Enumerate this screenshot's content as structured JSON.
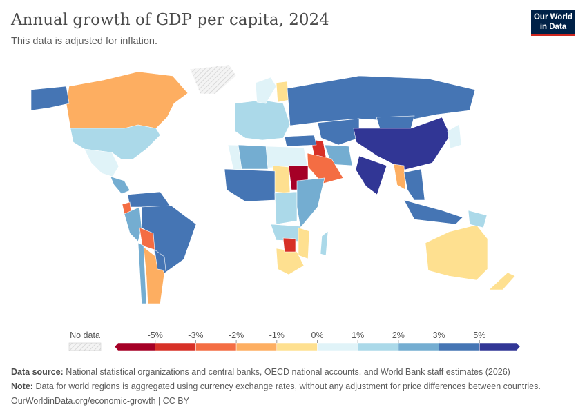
{
  "header": {
    "title": "Annual growth of GDP per capita, 2024",
    "subtitle": "This data is adjusted for inflation.",
    "logo": "Our World in Data"
  },
  "chart_data": {
    "type": "map",
    "title": "Annual growth of GDP per capita, 2024",
    "subtitle": "This data is adjusted for inflation.",
    "legend": {
      "no_data_label": "No data",
      "no_data_color": "hatched-grey",
      "tick_labels": [
        "-5%",
        "-3%",
        "-2%",
        "-1%",
        "0%",
        "1%",
        "2%",
        "3%",
        "5%"
      ],
      "bin_colors": [
        "#a50026",
        "#d73027",
        "#f46d43",
        "#fdae61",
        "#fee090",
        "#e0f3f8",
        "#abd9e9",
        "#74add1",
        "#4575b4",
        "#313695"
      ],
      "placement": "bottom"
    },
    "regions": [
      {
        "name": "Canada",
        "bin": 3
      },
      {
        "name": "Alaska",
        "bin": 8
      },
      {
        "name": "United States",
        "bin": 6
      },
      {
        "name": "Mexico",
        "bin": 5
      },
      {
        "name": "Central America",
        "bin": 7
      },
      {
        "name": "Greenland",
        "bin": -1
      },
      {
        "name": "Colombia/Venezuela",
        "bin": 8
      },
      {
        "name": "Brazil",
        "bin": 8
      },
      {
        "name": "Ecuador",
        "bin": 2
      },
      {
        "name": "Peru",
        "bin": 7
      },
      {
        "name": "Bolivia",
        "bin": 2
      },
      {
        "name": "Argentina",
        "bin": 3
      },
      {
        "name": "Chile",
        "bin": 7
      },
      {
        "name": "Paraguay/Uruguay",
        "bin": 8
      },
      {
        "name": "Europe",
        "bin": 6
      },
      {
        "name": "Scandinavia",
        "bin": 5
      },
      {
        "name": "Finland",
        "bin": 4
      },
      {
        "name": "Russia",
        "bin": 8
      },
      {
        "name": "Central Asia",
        "bin": 8
      },
      {
        "name": "Mongolia",
        "bin": 8
      },
      {
        "name": "China",
        "bin": 9
      },
      {
        "name": "India",
        "bin": 9
      },
      {
        "name": "Iran",
        "bin": 7
      },
      {
        "name": "Iraq",
        "bin": 1
      },
      {
        "name": "Saudi Arabia",
        "bin": 2
      },
      {
        "name": "Turkey",
        "bin": 8
      },
      {
        "name": "North Africa",
        "bin": 5
      },
      {
        "name": "Algeria",
        "bin": 7
      },
      {
        "name": "Sudan",
        "bin": 0
      },
      {
        "name": "Chad",
        "bin": 4
      },
      {
        "name": "West Africa",
        "bin": 8
      },
      {
        "name": "Central Africa",
        "bin": 6
      },
      {
        "name": "East Africa",
        "bin": 7
      },
      {
        "name": "Angola/Zambia",
        "bin": 6
      },
      {
        "name": "Southern Africa",
        "bin": 4
      },
      {
        "name": "Zimbabwe",
        "bin": 1
      },
      {
        "name": "Mozambique",
        "bin": 4
      },
      {
        "name": "Madagascar",
        "bin": 6
      },
      {
        "name": "Myanmar",
        "bin": 3
      },
      {
        "name": "Southeast Asia",
        "bin": 8
      },
      {
        "name": "Indonesia",
        "bin": 8
      },
      {
        "name": "Japan",
        "bin": 5
      },
      {
        "name": "Australia",
        "bin": 4
      },
      {
        "name": "New Zealand",
        "bin": 4
      },
      {
        "name": "Papua New Guinea",
        "bin": 6
      }
    ]
  },
  "footer": {
    "source_label": "Data source:",
    "source": "National statistical organizations and central banks, OECD national accounts, and World Bank staff estimates (2026)",
    "note_label": "Note:",
    "note": "Data for world regions is aggregated using currency exchange rates, without any adjustment for price differences between countries.",
    "url": "OurWorldinData.org/economic-growth | CC BY"
  }
}
